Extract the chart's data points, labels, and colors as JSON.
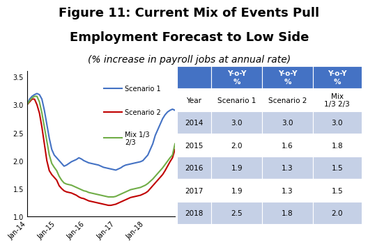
{
  "title_line1": "Figure 11: Current Mix of Events Pull",
  "title_line2": "Employment Forecast to Low Side",
  "subtitle": "(% increase in payroll jobs at annual rate)",
  "title_fontsize": 13,
  "subtitle_fontsize": 10,
  "x_labels": [
    "Jan-14",
    "Jan-15",
    "Jan-16",
    "Jan-17",
    "Jan-18"
  ],
  "x_tick_positions": [
    0,
    12,
    24,
    36,
    48
  ],
  "x_ticks_count": 61,
  "scenario1_color": "#4472C4",
  "scenario2_color": "#C00000",
  "mix_color": "#70AD47",
  "scenario1_label": "Scenario 1",
  "scenario2_label": "Scenario 2",
  "mix_label": "Mix 1/3\n2/3",
  "ylim": [
    1.0,
    3.6
  ],
  "yticks": [
    1.0,
    1.5,
    2.0,
    2.5,
    3.0,
    3.5
  ],
  "scenario1_data": [
    3.0,
    3.1,
    3.15,
    3.18,
    3.2,
    3.18,
    3.1,
    2.9,
    2.65,
    2.4,
    2.2,
    2.1,
    2.05,
    2.0,
    1.95,
    1.9,
    1.92,
    1.95,
    1.98,
    2.0,
    2.02,
    2.05,
    2.03,
    2.0,
    1.98,
    1.96,
    1.95,
    1.94,
    1.93,
    1.92,
    1.9,
    1.88,
    1.87,
    1.86,
    1.85,
    1.84,
    1.83,
    1.85,
    1.87,
    1.9,
    1.92,
    1.93,
    1.94,
    1.95,
    1.96,
    1.97,
    1.98,
    2.0,
    2.05,
    2.1,
    2.2,
    2.3,
    2.45,
    2.55,
    2.65,
    2.75,
    2.82,
    2.87,
    2.9,
    2.92,
    2.9
  ],
  "scenario2_data": [
    3.0,
    3.05,
    3.1,
    3.1,
    3.0,
    2.85,
    2.6,
    2.3,
    2.0,
    1.82,
    1.75,
    1.7,
    1.65,
    1.55,
    1.5,
    1.46,
    1.44,
    1.43,
    1.42,
    1.4,
    1.38,
    1.35,
    1.33,
    1.32,
    1.3,
    1.28,
    1.27,
    1.26,
    1.25,
    1.24,
    1.23,
    1.22,
    1.21,
    1.2,
    1.2,
    1.21,
    1.22,
    1.24,
    1.26,
    1.28,
    1.3,
    1.32,
    1.34,
    1.35,
    1.36,
    1.37,
    1.38,
    1.4,
    1.42,
    1.45,
    1.5,
    1.55,
    1.6,
    1.65,
    1.7,
    1.75,
    1.82,
    1.9,
    1.98,
    2.05,
    2.2
  ],
  "mix_data": [
    3.0,
    3.07,
    3.12,
    3.15,
    3.15,
    3.05,
    2.85,
    2.6,
    2.35,
    2.1,
    1.95,
    1.88,
    1.82,
    1.72,
    1.65,
    1.6,
    1.58,
    1.57,
    1.56,
    1.54,
    1.52,
    1.5,
    1.48,
    1.46,
    1.45,
    1.43,
    1.42,
    1.41,
    1.4,
    1.39,
    1.38,
    1.37,
    1.36,
    1.35,
    1.35,
    1.35,
    1.36,
    1.38,
    1.4,
    1.42,
    1.44,
    1.46,
    1.48,
    1.49,
    1.5,
    1.51,
    1.52,
    1.54,
    1.56,
    1.59,
    1.63,
    1.67,
    1.72,
    1.77,
    1.82,
    1.87,
    1.93,
    1.99,
    2.05,
    2.1,
    2.3
  ],
  "table_header_bg": "#4472C4",
  "table_header_color": "#FFFFFF",
  "table_row_bg_even": "#FFFFFF",
  "table_row_bg_odd": "#C5D0E6",
  "table_text_color": "#000000",
  "table_col_top_headers": [
    "Y-o-Y\n%",
    "Y-o-Y\n%",
    "Y-o-Y\n%"
  ],
  "table_col_sub_headers": [
    "Scenario 1",
    "Scenario 2",
    "Mix\n1/3 2/3"
  ],
  "table_rows": [
    [
      "2014",
      "3.0",
      "3.0",
      "3.0"
    ],
    [
      "2015",
      "2.0",
      "1.6",
      "1.8"
    ],
    [
      "2016",
      "1.9",
      "1.3",
      "1.5"
    ],
    [
      "2017",
      "1.9",
      "1.3",
      "1.5"
    ],
    [
      "2018",
      "2.5",
      "1.8",
      "2.0"
    ]
  ]
}
